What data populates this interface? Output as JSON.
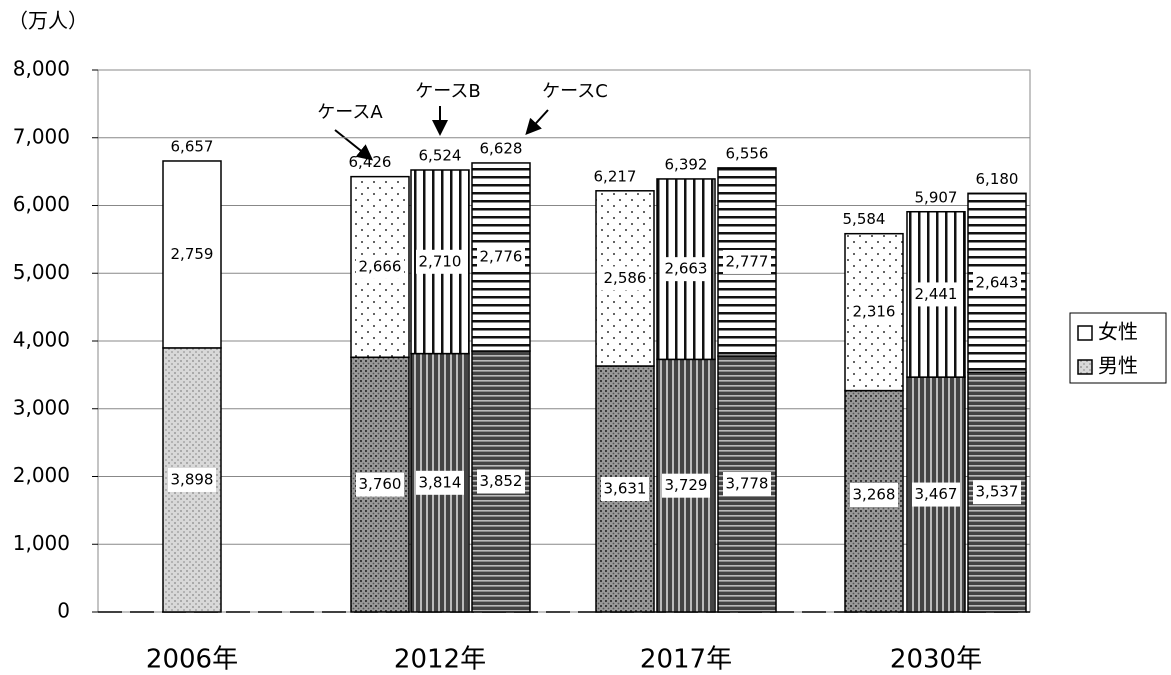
{
  "chart_data": {
    "type": "grouped_stacked_bar",
    "unit_label": "（万人）",
    "ylim": [
      0,
      8000
    ],
    "yticks": [
      0,
      {
        "value": 1000,
        "label": "1,000"
      },
      {
        "value": 2000,
        "label": "2,000"
      },
      {
        "value": 3000,
        "label": "3,000"
      },
      {
        "value": 4000,
        "label": "4,000"
      },
      {
        "value": 5000,
        "label": "5,000"
      },
      {
        "value": 6000,
        "label": "6,000"
      },
      {
        "value": 7000,
        "label": "7,000"
      },
      {
        "value": 8000,
        "label": "8,000"
      }
    ],
    "grid": true,
    "legend": "right",
    "series": [
      {
        "name": "男性"
      },
      {
        "name": "女性"
      }
    ],
    "groups": [
      {
        "label": "2006年",
        "bars": [
          {
            "pattern": "plain",
            "values": [
              3898,
              2759
            ],
            "value_labels": [
              "3,898",
              "2,759"
            ],
            "total": 6657,
            "total_label": "6,657"
          }
        ]
      },
      {
        "label": "2012年",
        "bars": [
          {
            "annotation": "ケースA",
            "pattern": "dots",
            "values": [
              3760,
              2666
            ],
            "value_labels": [
              "3,760",
              "2,666"
            ],
            "total": 6426,
            "total_label": "6,426"
          },
          {
            "annotation": "ケースB",
            "pattern": "vertical",
            "values": [
              3814,
              2710
            ],
            "value_labels": [
              "3,814",
              "2,710"
            ],
            "total": 6524,
            "total_label": "6,524"
          },
          {
            "annotation": "ケースC",
            "pattern": "horizontal",
            "values": [
              3852,
              2776
            ],
            "value_labels": [
              "3,852",
              "2,776"
            ],
            "total": 6628,
            "total_label": "6,628"
          }
        ]
      },
      {
        "label": "2017年",
        "bars": [
          {
            "pattern": "dots",
            "values": [
              3631,
              2586
            ],
            "value_labels": [
              "3,631",
              "2,586"
            ],
            "total": 6217,
            "total_label": "6,217"
          },
          {
            "pattern": "vertical",
            "values": [
              3729,
              2663
            ],
            "value_labels": [
              "3,729",
              "2,663"
            ],
            "total": 6392,
            "total_label": "6,392"
          },
          {
            "pattern": "horizontal",
            "values": [
              3778,
              2777
            ],
            "value_labels": [
              "3,778",
              "2,777"
            ],
            "total": 6556,
            "total_label": "6,556"
          }
        ]
      },
      {
        "label": "2030年",
        "bars": [
          {
            "pattern": "dots",
            "values": [
              3268,
              2316
            ],
            "value_labels": [
              "3,268",
              "2,316"
            ],
            "total": 5584,
            "total_label": "5,584"
          },
          {
            "pattern": "vertical",
            "values": [
              3467,
              2441
            ],
            "value_labels": [
              "3,467",
              "2,441"
            ],
            "total": 5907,
            "total_label": "5,907"
          },
          {
            "pattern": "horizontal",
            "values": [
              3537,
              2643
            ],
            "value_labels": [
              "3,537",
              "2,643"
            ],
            "total": 6180,
            "total_label": "6,180"
          }
        ]
      }
    ]
  }
}
